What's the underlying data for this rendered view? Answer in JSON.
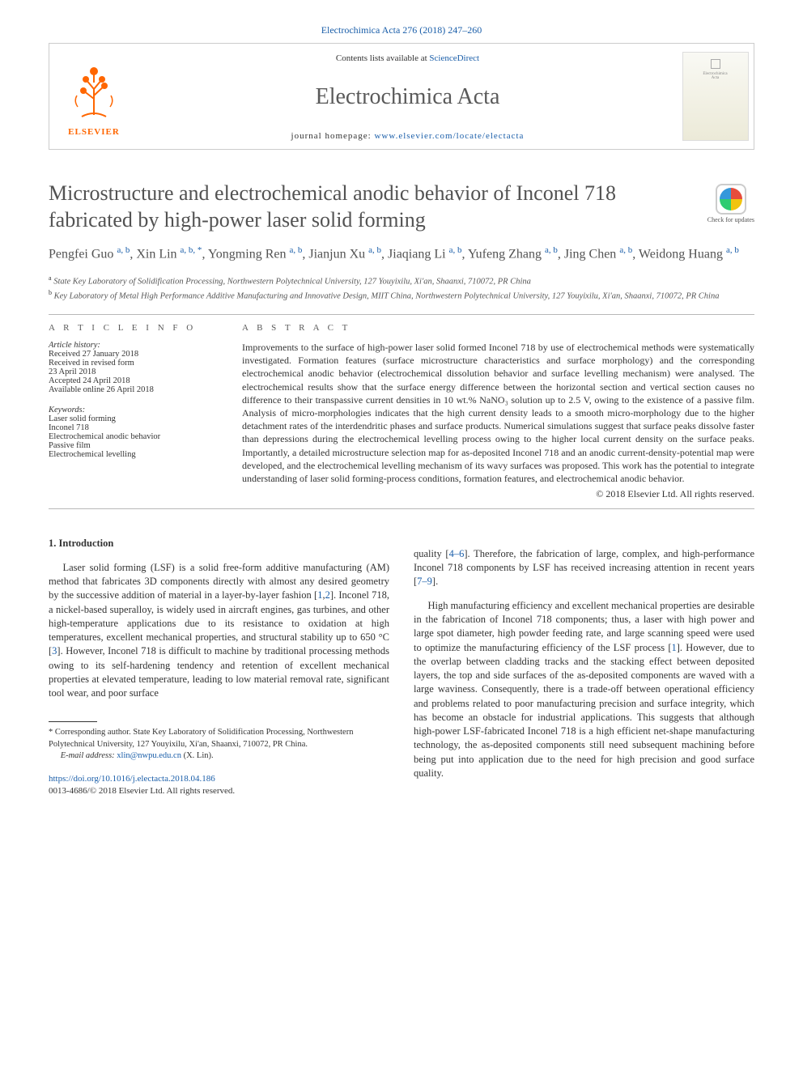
{
  "top_citation": "Electrochimica Acta 276 (2018) 247–260",
  "header": {
    "contents_prefix": "Contents lists available at ",
    "contents_link": "ScienceDirect",
    "journal_name": "Electrochimica Acta",
    "homepage_prefix": "journal homepage: ",
    "homepage_url": "www.elsevier.com/locate/electacta",
    "publisher_logo": "ELSEVIER",
    "cover_line1": "Electrochimica",
    "cover_line2": "Acta"
  },
  "check_updates_label": "Check for updates",
  "title": "Microstructure and electrochemical anodic behavior of Inconel 718 fabricated by high-power laser solid forming",
  "authors_html": "Pengfei Guo <span class='sup'>a, b</span>, Xin Lin <span class='sup'>a, b, *</span>, Yongming Ren <span class='sup'>a, b</span>, Jianjun Xu <span class='sup'>a, b</span>, Jiaqiang Li <span class='sup'>a, b</span>, Yufeng Zhang <span class='sup'>a, b</span>, Jing Chen <span class='sup'>a, b</span>, Weidong Huang <span class='sup'>a, b</span>",
  "affiliations": {
    "a": "State Key Laboratory of Solidification Processing, Northwestern Polytechnical University, 127 Youyixilu, Xi'an, Shaanxi, 710072, PR China",
    "b": "Key Laboratory of Metal High Performance Additive Manufacturing and Innovative Design, MIIT China, Northwestern Polytechnical University, 127 Youyixilu, Xi'an, Shaanxi, 710072, PR China"
  },
  "article_info": {
    "header": "A R T I C L E   I N F O",
    "history_label": "Article history:",
    "history": [
      "Received 27 January 2018",
      "Received in revised form",
      "23 April 2018",
      "Accepted 24 April 2018",
      "Available online 26 April 2018"
    ],
    "keywords_label": "Keywords:",
    "keywords": [
      "Laser solid forming",
      "Inconel 718",
      "Electrochemical anodic behavior",
      "Passive film",
      "Electrochemical levelling"
    ]
  },
  "abstract": {
    "header": "A B S T R A C T",
    "text": "Improvements to the surface of high-power laser solid formed Inconel 718 by use of electrochemical methods were systematically investigated. Formation features (surface microstructure characteristics and surface morphology) and the corresponding electrochemical anodic behavior (electrochemical dissolution behavior and surface levelling mechanism) were analysed. The electrochemical results show that the surface energy difference between the horizontal section and vertical section causes no difference to their transpassive current densities in 10 wt.% NaNO₃ solution up to 2.5 V, owing to the existence of a passive film. Analysis of micro-morphologies indicates that the high current density leads to a smooth micro-morphology due to the higher detachment rates of the interdendritic phases and surface products. Numerical simulations suggest that surface peaks dissolve faster than depressions during the electrochemical levelling process owing to the higher local current density on the surface peaks. Importantly, a detailed microstructure selection map for as-deposited Inconel 718 and an anodic current-density-potential map were developed, and the electrochemical levelling mechanism of its wavy surfaces was proposed. This work has the potential to integrate understanding of laser solid forming-process conditions, formation features, and electrochemical anodic behavior.",
    "copyright": "© 2018 Elsevier Ltd. All rights reserved."
  },
  "body": {
    "section1_heading": "1. Introduction",
    "col1_p1_a": "Laser solid forming (LSF) is a solid free-form additive manufacturing (AM) method that fabricates 3D components directly with almost any desired geometry by the successive addition of material in a layer-by-layer fashion [",
    "col1_p1_ref1": "1",
    "col1_p1_b": ",",
    "col1_p1_ref2": "2",
    "col1_p1_c": "]. Inconel 718, a nickel-based superalloy, is widely used in aircraft engines, gas turbines, and other high-temperature applications due to its resistance to oxidation at high temperatures, excellent mechanical properties, and structural stability up to 650 °C [",
    "col1_p1_ref3": "3",
    "col1_p1_d": "]. However, Inconel 718 is difficult to machine by traditional processing methods owing to its self-hardening tendency and retention of excellent mechanical properties at elevated temperature, leading to low material removal rate, significant tool wear, and poor surface",
    "col2_p0_a": "quality [",
    "col2_p0_ref1": "4–6",
    "col2_p0_b": "]. Therefore, the fabrication of large, complex, and high-performance Inconel 718 components by LSF has received increasing attention in recent years [",
    "col2_p0_ref2": "7–9",
    "col2_p0_c": "].",
    "col2_p1_a": "High manufacturing efficiency and excellent mechanical properties are desirable in the fabrication of Inconel 718 components; thus, a laser with high power and large spot diameter, high powder feeding rate, and large scanning speed were used to optimize the manufacturing efficiency of the LSF process [",
    "col2_p1_ref1": "1",
    "col2_p1_b": "]. However, due to the overlap between cladding tracks and the stacking effect between deposited layers, the top and side surfaces of the as-deposited components are waved with a large waviness. Consequently, there is a trade-off between operational efficiency and problems related to poor manufacturing precision and surface integrity, which has become an obstacle for industrial applications. This suggests that although high-power LSF-fabricated Inconel 718 is a high efficient net-shape manufacturing technology, the as-deposited components still need subsequent machining before being put into application due to the need for high precision and good surface quality."
  },
  "footnotes": {
    "corresponding": "* Corresponding author. State Key Laboratory of Solidification Processing, Northwestern Polytechnical University, 127 Youyixilu, Xi'an, Shaanxi, 710072, PR China.",
    "email_label": "E-mail address: ",
    "email": "xlin@nwpu.edu.cn",
    "email_suffix": " (X. Lin)."
  },
  "footer": {
    "doi": "https://doi.org/10.1016/j.electacta.2018.04.186",
    "issn_line": "0013-4686/© 2018 Elsevier Ltd. All rights reserved."
  },
  "colors": {
    "link": "#1a5ea9",
    "text": "#333333",
    "title_gray": "#525252",
    "elsevier_orange": "#ff6600",
    "rule": "#b8b8b8"
  }
}
